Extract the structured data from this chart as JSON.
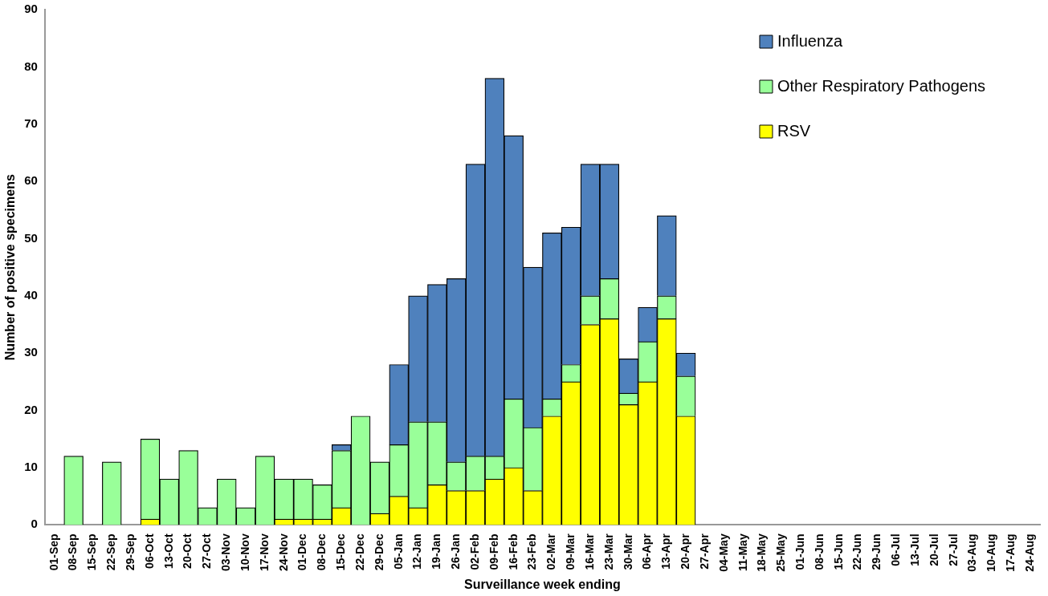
{
  "chart_data": {
    "type": "bar",
    "stacked": true,
    "xlabel": "Surveillance week ending",
    "ylabel": "Number of positive specimens",
    "categories": [
      "01-Sep",
      "08-Sep",
      "15-Sep",
      "22-Sep",
      "29-Sep",
      "06-Oct",
      "13-Oct",
      "20-Oct",
      "27-Oct",
      "03-Nov",
      "10-Nov",
      "17-Nov",
      "24-Nov",
      "01-Dec",
      "08-Dec",
      "15-Dec",
      "22-Dec",
      "29-Dec",
      "05-Jan",
      "12-Jan",
      "19-Jan",
      "26-Jan",
      "02-Feb",
      "09-Feb",
      "16-Feb",
      "23-Feb",
      "02-Mar",
      "09-Mar",
      "16-Mar",
      "23-Mar",
      "30-Mar",
      "06-Apr",
      "13-Apr",
      "20-Apr",
      "27-Apr",
      "04-May",
      "11-May",
      "18-May",
      "25-May",
      "01-Jun",
      "08-Jun",
      "15-Jun",
      "22-Jun",
      "29-Jun",
      "06-Jul",
      "13-Jul",
      "20-Jul",
      "27-Jul",
      "03-Aug",
      "10-Aug",
      "17-Aug",
      "24-Aug"
    ],
    "series": [
      {
        "name": "RSV",
        "color": "#ffff00",
        "values": [
          0,
          0,
          0,
          0,
          0,
          1,
          0,
          0,
          0,
          0,
          0,
          0,
          1,
          1,
          1,
          3,
          0,
          2,
          5,
          3,
          7,
          6,
          6,
          8,
          10,
          6,
          19,
          25,
          35,
          36,
          21,
          25,
          36,
          19,
          0,
          0,
          0,
          0,
          0,
          0,
          0,
          0,
          0,
          0,
          0,
          0,
          0,
          0,
          0,
          0,
          0,
          0
        ]
      },
      {
        "name": "Other Respiratory Pathogens",
        "color": "#99ff99",
        "values": [
          0,
          12,
          0,
          11,
          0,
          14,
          8,
          13,
          3,
          8,
          3,
          12,
          7,
          7,
          6,
          10,
          19,
          9,
          9,
          15,
          11,
          5,
          6,
          4,
          12,
          11,
          3,
          3,
          5,
          7,
          2,
          7,
          4,
          7,
          0,
          0,
          0,
          0,
          0,
          0,
          0,
          0,
          0,
          0,
          0,
          0,
          0,
          0,
          0,
          0,
          0,
          0
        ]
      },
      {
        "name": "Influenza",
        "color": "#4f81bd",
        "values": [
          0,
          0,
          0,
          0,
          0,
          0,
          0,
          0,
          0,
          0,
          0,
          0,
          0,
          0,
          0,
          1,
          0,
          0,
          14,
          22,
          24,
          32,
          51,
          66,
          46,
          28,
          29,
          24,
          23,
          20,
          6,
          6,
          14,
          4,
          0,
          0,
          0,
          0,
          0,
          0,
          0,
          0,
          0,
          0,
          0,
          0,
          0,
          0,
          0,
          0,
          0,
          0
        ]
      }
    ],
    "ylim": [
      0,
      90
    ],
    "yticks": [
      0,
      10,
      20,
      30,
      40,
      50,
      60,
      70,
      80,
      90
    ],
    "grid": false,
    "legend": "top right"
  }
}
